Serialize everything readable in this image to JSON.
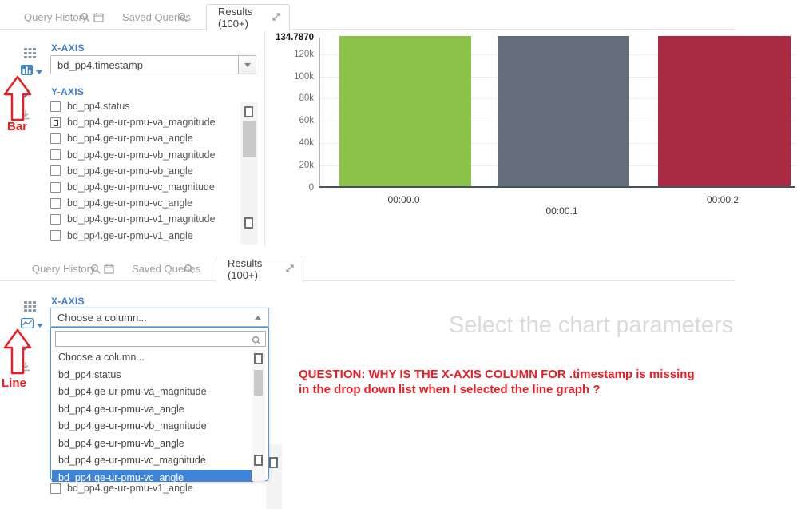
{
  "tabs": {
    "query_history": "Query History",
    "saved_queries": "Saved Queries",
    "results": "Results (100+)"
  },
  "top_panel": {
    "chart_type": "Bar",
    "x_axis_label": "X-AXIS",
    "x_axis_value": "bd_pp4.timestamp",
    "y_axis_label": "Y-AXIS",
    "y_items": [
      {
        "label": "bd_pp4.status",
        "state": "unchecked"
      },
      {
        "label": "bd_pp4.ge-ur-pmu-va_magnitude",
        "state": "mixed"
      },
      {
        "label": "bd_pp4.ge-ur-pmu-va_angle",
        "state": "unchecked"
      },
      {
        "label": "bd_pp4.ge-ur-pmu-vb_magnitude",
        "state": "unchecked"
      },
      {
        "label": "bd_pp4.ge-ur-pmu-vb_angle",
        "state": "unchecked"
      },
      {
        "label": "bd_pp4.ge-ur-pmu-vc_magnitude",
        "state": "unchecked"
      },
      {
        "label": "bd_pp4.ge-ur-pmu-vc_angle",
        "state": "unchecked"
      },
      {
        "label": "bd_pp4.ge-ur-pmu-v1_magnitude",
        "state": "unchecked"
      },
      {
        "label": "bd_pp4.ge-ur-pmu-v1_angle",
        "state": "unchecked"
      }
    ]
  },
  "bottom_panel": {
    "chart_type": "Line",
    "x_axis_label": "X-AXIS",
    "x_select_value": "Choose a column...",
    "search_value": "",
    "options": [
      "Choose a column...",
      "bd_pp4.status",
      "bd_pp4.ge-ur-pmu-va_magnitude",
      "bd_pp4.ge-ur-pmu-va_angle",
      "bd_pp4.ge-ur-pmu-vb_magnitude",
      "bd_pp4.ge-ur-pmu-vb_angle",
      "bd_pp4.ge-ur-pmu-vc_magnitude",
      "bd_pp4.ge-ur-pmu-vc_angle"
    ],
    "highlighted_index": 7,
    "highlighted_option": "bd_pp4.ge-ur-pmu-vc_angle",
    "partially_visible_item": "bd_pp4.ge-ur-pmu-v1_angle",
    "placeholder_message": "Select the chart parameters"
  },
  "annotations": {
    "bar_label": "Bar",
    "line_label": "Line",
    "question_line1": "QUESTION: WHY IS THE X-AXIS COLUMN FOR  .timestamp is missing",
    "question_line2": "in the drop down list when I selected the line graph ?",
    "annotation_color": "#ed1c24"
  },
  "chart_data": {
    "type": "bar",
    "categories": [
      "00:00.0",
      "00:00.1",
      "00:00.2"
    ],
    "values": [
      134787,
      134787,
      134787
    ],
    "bar_colors": [
      "#8bc34a",
      "#646d7a",
      "#a82b43"
    ],
    "ymax": 134787,
    "ymax_label": "134.7870",
    "yticks": [
      {
        "value": 0,
        "label": "0"
      },
      {
        "value": 20000,
        "label": "20k"
      },
      {
        "value": 40000,
        "label": "40k"
      },
      {
        "value": 60000,
        "label": "60k"
      },
      {
        "value": 80000,
        "label": "80k"
      },
      {
        "value": 100000,
        "label": "100k"
      },
      {
        "value": 120000,
        "label": "120k"
      },
      {
        "value": 134787,
        "label": "134.7870",
        "emphasis": true
      }
    ],
    "xlabel": "",
    "ylabel": "",
    "grid": true,
    "legend": false
  }
}
